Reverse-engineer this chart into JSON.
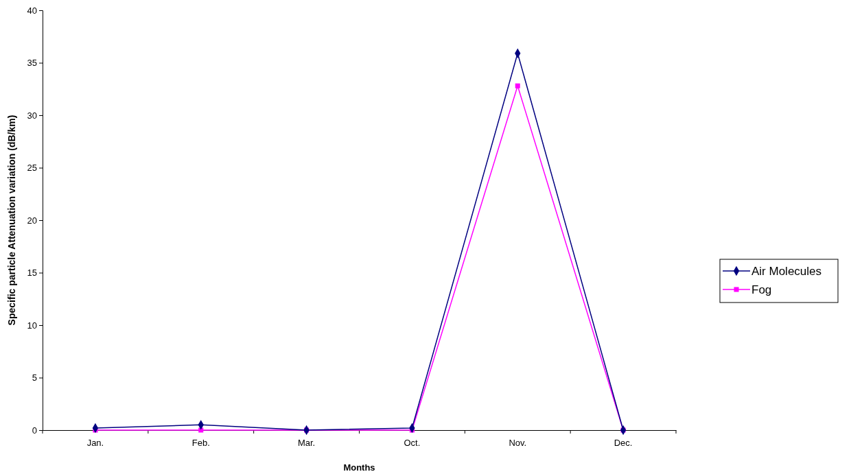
{
  "chart_data": {
    "type": "line",
    "xlabel": "Months",
    "ylabel": "Specific particle Attenuation variation (dB/km)",
    "categories": [
      "Jan.",
      "Feb.",
      "Mar.",
      "Oct.",
      "Nov.",
      "Dec."
    ],
    "series": [
      {
        "name": "Air Molecules",
        "color": "#000080",
        "marker": "diamond",
        "values": [
          0.2,
          0.5,
          0,
          0.2,
          35.9,
          0
        ]
      },
      {
        "name": "Fog",
        "color": "#ff00ff",
        "marker": "square",
        "values": [
          0,
          0,
          0,
          0,
          32.8,
          0
        ]
      }
    ],
    "ylim": [
      0,
      40
    ],
    "yticks": [
      0,
      5,
      10,
      15,
      20,
      25,
      30,
      35,
      40
    ],
    "grid": false,
    "legend": "right"
  }
}
